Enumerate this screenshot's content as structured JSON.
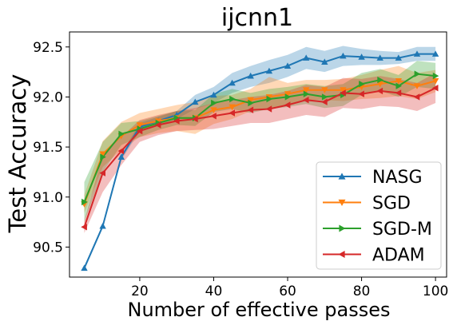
{
  "chart_data": {
    "type": "line",
    "title": "ijcnn1",
    "xlabel": "Number of effective passes",
    "ylabel": "Test Accuracy",
    "xlim": [
      1,
      103
    ],
    "ylim": [
      90.2,
      92.65
    ],
    "xticks": [
      20,
      40,
      60,
      80,
      100
    ],
    "yticks": [
      90.5,
      91.0,
      91.5,
      92.0,
      92.5
    ],
    "xtick_labels": [
      "20",
      "40",
      "60",
      "80",
      "100"
    ],
    "ytick_labels": [
      "90.5",
      "91.0",
      "91.5",
      "92.0",
      "92.5"
    ],
    "legend_position": "lower-right",
    "grid": false,
    "x": [
      5,
      10,
      15,
      20,
      25,
      30,
      35,
      40,
      45,
      50,
      55,
      60,
      65,
      70,
      75,
      80,
      85,
      90,
      95,
      100
    ],
    "series": [
      {
        "name": "NASG",
        "color": "#1f77b4",
        "marker": "triangle-up",
        "values": [
          90.29,
          90.71,
          91.4,
          91.7,
          91.76,
          91.82,
          91.95,
          92.02,
          92.14,
          92.21,
          92.26,
          92.31,
          92.39,
          92.35,
          92.41,
          92.4,
          92.39,
          92.39,
          92.43,
          92.43
        ],
        "lower": [
          90.27,
          90.69,
          91.37,
          91.66,
          91.72,
          91.78,
          91.88,
          91.94,
          92.04,
          92.1,
          92.14,
          92.2,
          92.28,
          92.25,
          92.31,
          92.32,
          92.32,
          92.33,
          92.36,
          92.36
        ],
        "upper": [
          90.31,
          90.73,
          91.43,
          91.74,
          91.8,
          91.86,
          92.02,
          92.1,
          92.24,
          92.31,
          92.37,
          92.42,
          92.5,
          92.46,
          92.51,
          92.48,
          92.46,
          92.45,
          92.5,
          92.5
        ]
      },
      {
        "name": "SGD",
        "color": "#ff7f0e",
        "marker": "triangle-down",
        "values": [
          90.93,
          91.43,
          91.61,
          91.72,
          91.76,
          91.79,
          91.79,
          91.87,
          91.9,
          91.97,
          92.0,
          92.03,
          92.07,
          92.07,
          92.07,
          92.1,
          92.13,
          92.16,
          92.11,
          92.16
        ],
        "lower": [
          90.84,
          91.3,
          91.47,
          91.6,
          91.64,
          91.66,
          91.63,
          91.73,
          91.78,
          91.86,
          91.88,
          91.92,
          91.97,
          91.97,
          91.96,
          91.98,
          91.99,
          92.01,
          91.98,
          92.05
        ],
        "upper": [
          91.02,
          91.56,
          91.75,
          91.84,
          91.88,
          91.92,
          91.95,
          92.01,
          92.02,
          92.08,
          92.2,
          92.14,
          92.17,
          92.17,
          92.18,
          92.22,
          92.27,
          92.31,
          92.24,
          92.27
        ]
      },
      {
        "name": "SGD-M",
        "color": "#2ca02c",
        "marker": "triangle-right",
        "values": [
          90.95,
          91.4,
          91.63,
          91.68,
          91.74,
          91.79,
          91.79,
          91.94,
          91.98,
          91.94,
          91.98,
          92.0,
          92.03,
          92.0,
          92.02,
          92.13,
          92.17,
          92.11,
          92.23,
          92.21
        ],
        "lower": [
          90.75,
          91.25,
          91.52,
          91.6,
          91.67,
          91.72,
          91.71,
          91.85,
          91.88,
          91.84,
          91.88,
          91.9,
          91.93,
          91.89,
          91.91,
          92.02,
          92.06,
          92.0,
          92.1,
          92.08
        ],
        "upper": [
          91.15,
          91.55,
          91.74,
          91.76,
          91.81,
          91.86,
          91.87,
          92.03,
          92.08,
          92.04,
          92.08,
          92.1,
          92.13,
          92.11,
          92.13,
          92.24,
          92.28,
          92.22,
          92.36,
          92.34
        ]
      },
      {
        "name": "ADAM",
        "color": "#d62728",
        "marker": "triangle-left",
        "values": [
          90.7,
          91.24,
          91.46,
          91.66,
          91.72,
          91.76,
          91.78,
          91.81,
          91.84,
          91.87,
          91.88,
          91.92,
          91.97,
          91.95,
          92.04,
          92.03,
          92.06,
          92.04,
          92.0,
          92.09
        ],
        "lower": [
          90.64,
          91.05,
          91.32,
          91.55,
          91.62,
          91.66,
          91.67,
          91.68,
          91.71,
          91.74,
          91.74,
          91.78,
          91.82,
          91.8,
          91.89,
          91.88,
          91.91,
          91.9,
          91.86,
          91.94
        ],
        "upper": [
          90.76,
          91.43,
          91.6,
          91.77,
          91.82,
          91.86,
          91.89,
          91.94,
          91.97,
          92.0,
          92.02,
          92.06,
          92.12,
          92.1,
          92.19,
          92.18,
          92.21,
          92.18,
          92.14,
          92.24
        ]
      }
    ]
  }
}
